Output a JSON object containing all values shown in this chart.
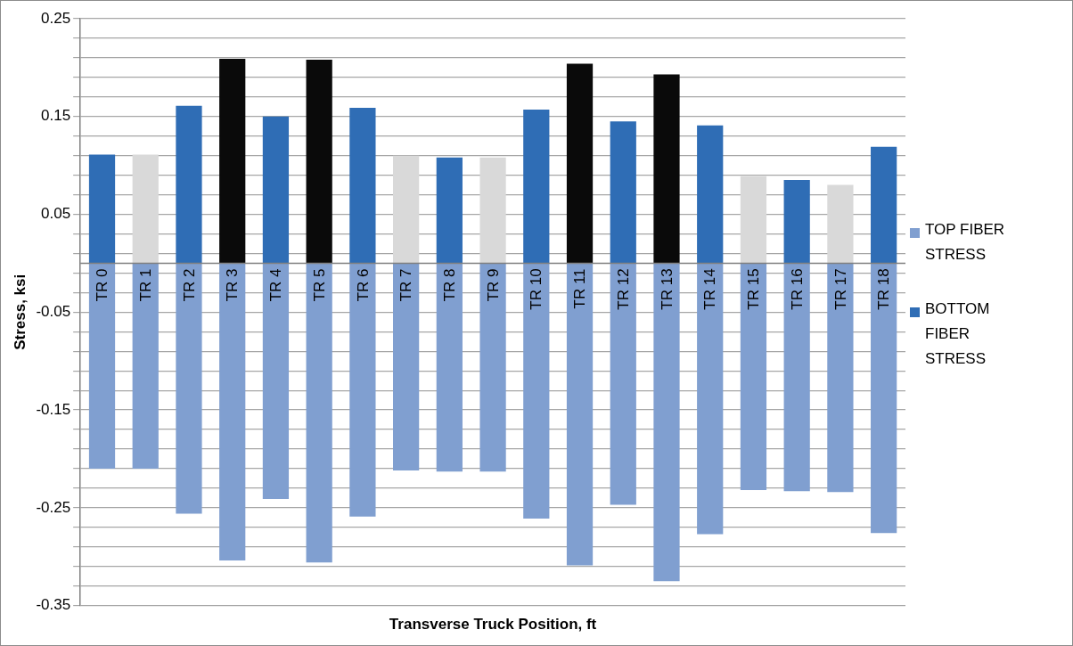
{
  "chart_data": {
    "type": "bar",
    "xlabel": "Transverse Truck Position, ft",
    "ylabel": "Stress, ksi",
    "categories": [
      "TR 0",
      "TR 1",
      "TR 2",
      "TR 3",
      "TR 4",
      "TR 5",
      "TR 6",
      "TR 7",
      "TR 8",
      "TR 9",
      "TR 10",
      "TR 11",
      "TR 12",
      "TR 13",
      "TR 14",
      "TR 15",
      "TR 16",
      "TR 17",
      "TR 18"
    ],
    "stacked": true,
    "series": [
      {
        "name": "TOP FIBER STRESS",
        "color": "#809fd0",
        "values": [
          -0.21,
          -0.21,
          -0.256,
          -0.304,
          -0.241,
          -0.306,
          -0.259,
          -0.212,
          -0.213,
          -0.213,
          -0.261,
          -0.309,
          -0.247,
          -0.325,
          -0.277,
          -0.232,
          -0.233,
          -0.234,
          -0.276
        ]
      },
      {
        "name": "BOTTOM FIBER STRESS",
        "color": "#2f6db5",
        "colors": [
          "#2f6db5",
          "#d9d9d9",
          "#2f6db5",
          "#0a0a0a",
          "#2f6db5",
          "#0a0a0a",
          "#2f6db5",
          "#d9d9d9",
          "#2f6db5",
          "#d9d9d9",
          "#2f6db5",
          "#0a0a0a",
          "#2f6db5",
          "#0a0a0a",
          "#2f6db5",
          "#d9d9d9",
          "#2f6db5",
          "#d9d9d9",
          "#2f6db5"
        ],
        "values": [
          0.111,
          0.111,
          0.161,
          0.209,
          0.15,
          0.208,
          0.159,
          0.11,
          0.108,
          0.108,
          0.157,
          0.204,
          0.145,
          0.193,
          0.141,
          0.089,
          0.085,
          0.08,
          0.119
        ]
      }
    ],
    "ylim": [
      -0.35,
      0.25
    ],
    "yticks": [
      -0.35,
      {
        "value": -0.33,
        "label": null
      },
      {
        "value": -0.31,
        "label": null
      },
      {
        "value": -0.29,
        "label": null
      },
      {
        "value": -0.27,
        "label": null
      },
      -0.25,
      {
        "value": -0.23,
        "label": null
      },
      {
        "value": -0.21,
        "label": null
      },
      {
        "value": -0.19,
        "label": null
      },
      {
        "value": -0.17,
        "label": null
      },
      -0.15,
      {
        "value": -0.13,
        "label": null
      },
      {
        "value": -0.11,
        "label": null
      },
      {
        "value": -0.09,
        "label": null
      },
      {
        "value": -0.07,
        "label": null
      },
      -0.05,
      {
        "value": -0.03,
        "label": null
      },
      {
        "value": -0.01,
        "label": null
      },
      {
        "value": 0.01,
        "label": null
      },
      {
        "value": 0.03,
        "label": null
      },
      0.05,
      {
        "value": 0.07,
        "label": null
      },
      {
        "value": 0.09,
        "label": null
      },
      {
        "value": 0.11,
        "label": null
      },
      {
        "value": 0.13,
        "label": null
      },
      0.15,
      {
        "value": 0.17,
        "label": null
      },
      {
        "value": 0.19,
        "label": null
      },
      {
        "value": 0.21,
        "label": null
      },
      {
        "value": 0.23,
        "label": null
      },
      0.25
    ],
    "grid": "y",
    "legend": "right"
  }
}
